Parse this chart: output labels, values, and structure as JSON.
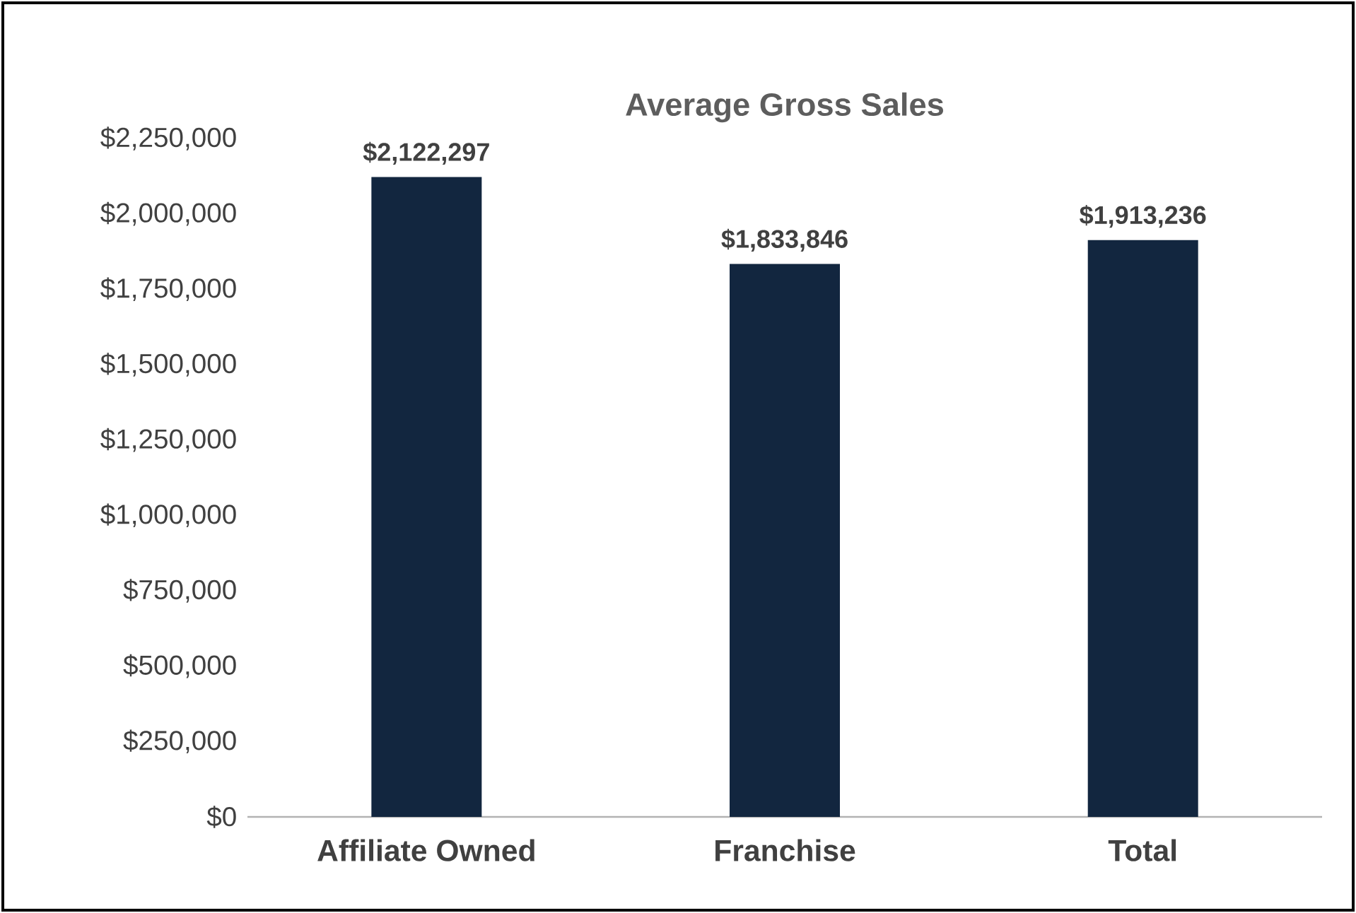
{
  "chart_data": {
    "type": "bar",
    "title": "Average Gross Sales",
    "categories": [
      "Affiliate Owned",
      "Franchise",
      "Total"
    ],
    "values": [
      2122297,
      1833846,
      1913236
    ],
    "value_labels": [
      "$2,122,297",
      "$1,833,846",
      "$1,913,236"
    ],
    "color": "#12263f",
    "ylim": [
      0,
      2250000
    ],
    "yticks": [
      {
        "value": 0,
        "label": "$0"
      },
      {
        "value": 250000,
        "label": "$250,000"
      },
      {
        "value": 500000,
        "label": "$500,000"
      },
      {
        "value": 750000,
        "label": "$750,000"
      },
      {
        "value": 1000000,
        "label": "$1,000,000"
      },
      {
        "value": 1250000,
        "label": "$1,250,000"
      },
      {
        "value": 1500000,
        "label": "$1,500,000"
      },
      {
        "value": 1750000,
        "label": "$1,750,000"
      },
      {
        "value": 2000000,
        "label": "$2,000,000"
      },
      {
        "value": 2250000,
        "label": "$2,250,000"
      }
    ]
  }
}
